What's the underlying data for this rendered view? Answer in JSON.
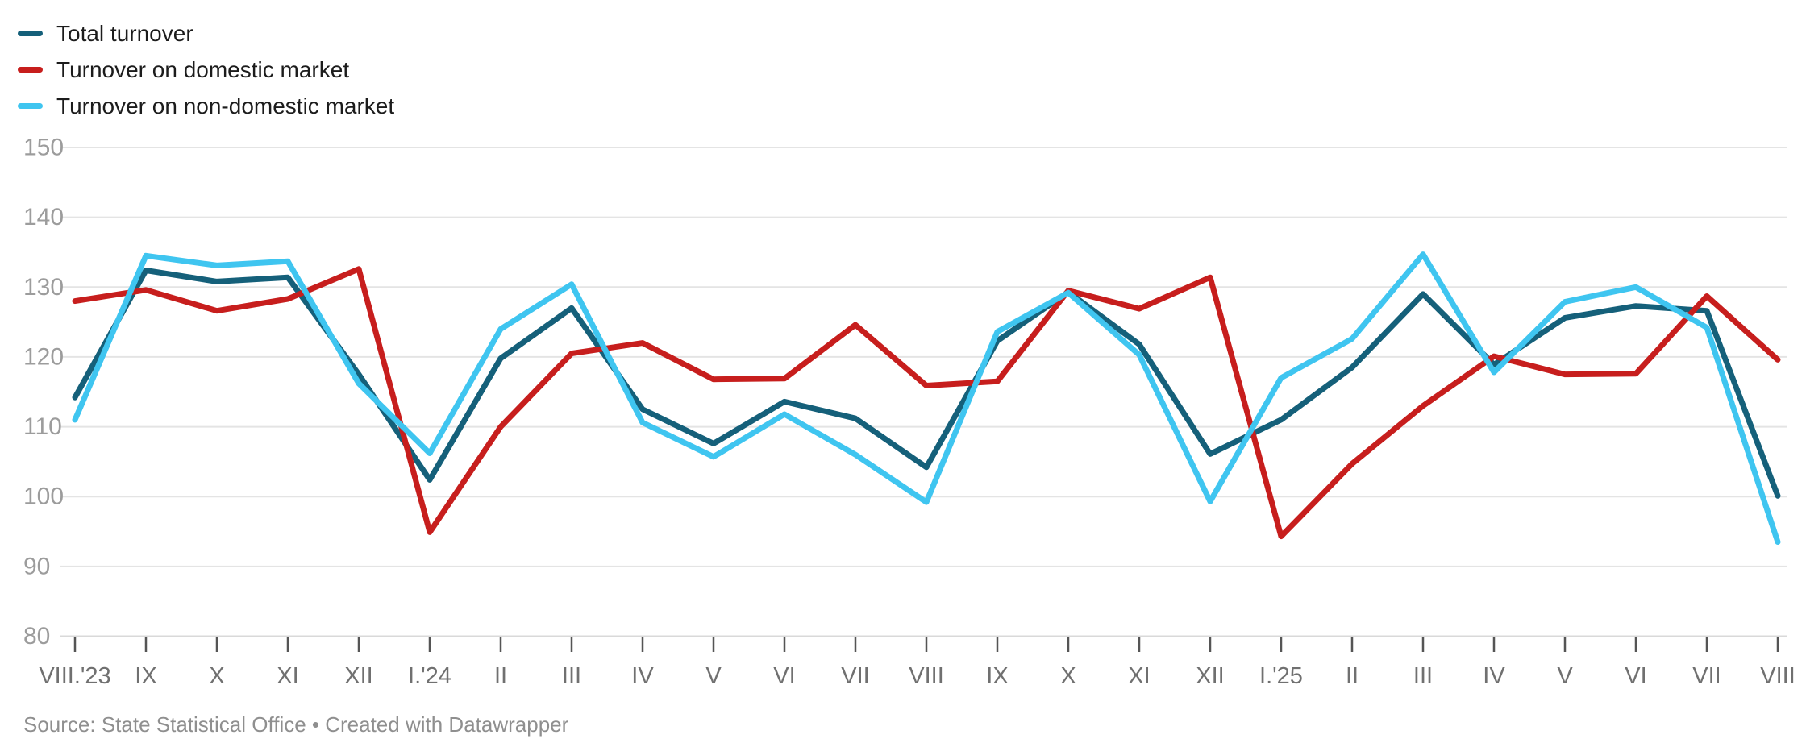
{
  "footer": {
    "source": "Source: State Statistical Office • Created with Datawrapper"
  },
  "chart_data": {
    "type": "line",
    "title": "",
    "xlabel": "",
    "ylabel": "",
    "grid": "horizontal",
    "legend_position": "top-left",
    "ylim": [
      80,
      150
    ],
    "y_ticks": [
      150,
      140,
      130,
      120,
      110,
      100,
      90,
      80
    ],
    "x_categories": [
      "VIII.'23",
      "IX",
      "X",
      "XI",
      "XII",
      "I.'24",
      "II",
      "III",
      "IV",
      "V",
      "VI",
      "VII",
      "VIII",
      "IX",
      "X",
      "XI",
      "XII",
      "I.'25",
      "II",
      "III",
      "IV",
      "V",
      "VI",
      "VII",
      "VIII"
    ],
    "series": [
      {
        "id": "total-turnover",
        "name": "Total turnover",
        "color": "#15607a",
        "values": [
          114.2,
          132.4,
          130.8,
          131.4,
          117.5,
          102.4,
          119.8,
          127.0,
          112.5,
          107.6,
          113.6,
          111.2,
          104.2,
          122.3,
          129.3,
          121.8,
          106.1,
          111.0,
          118.5,
          129.0,
          118.9,
          125.6,
          127.3,
          126.6,
          100.1
        ]
      },
      {
        "id": "domestic-market",
        "name": "Turnover on domestic market",
        "color": "#c71e1d",
        "values": [
          128.0,
          129.6,
          126.6,
          128.3,
          132.6,
          94.9,
          110.0,
          120.5,
          122.0,
          116.8,
          116.9,
          124.6,
          115.9,
          116.5,
          129.5,
          126.9,
          131.4,
          94.3,
          104.7,
          113.0,
          120.1,
          117.5,
          117.6,
          128.7,
          119.6
        ]
      },
      {
        "id": "non-domestic-market",
        "name": "Turnover on non-domestic market",
        "color": "#3fc5f0",
        "values": [
          111.0,
          134.5,
          133.1,
          133.7,
          116.2,
          106.2,
          124.0,
          130.4,
          110.6,
          105.7,
          111.8,
          106.0,
          99.2,
          123.6,
          129.2,
          120.3,
          99.3,
          117.0,
          122.6,
          134.7,
          117.8,
          127.9,
          130.0,
          124.2,
          93.5
        ]
      }
    ]
  }
}
